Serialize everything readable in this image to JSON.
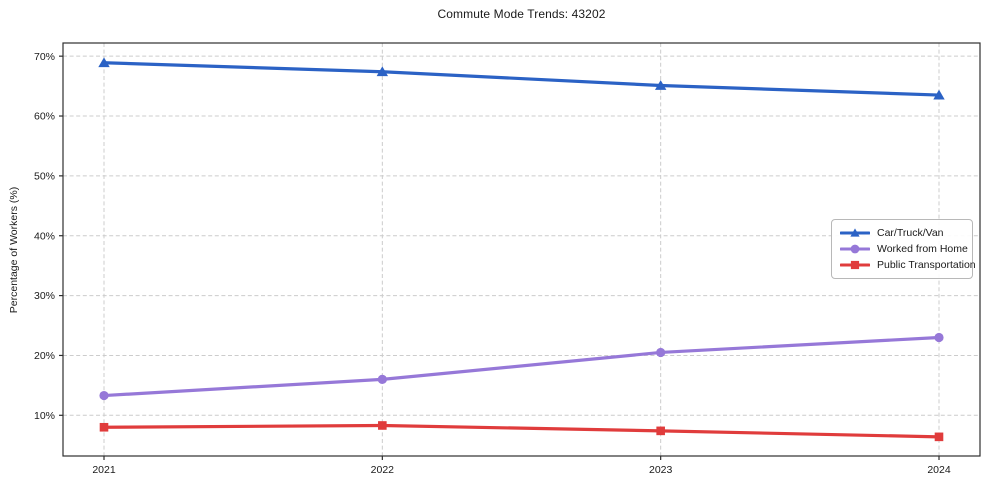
{
  "chart_data": {
    "type": "line",
    "title": "Commute Mode Trends: 43202",
    "xlabel": "",
    "ylabel": "Percentage of Workers (%)",
    "x": [
      2021,
      2022,
      2023,
      2024
    ],
    "yticks": [
      10,
      20,
      30,
      40,
      50,
      60,
      70
    ],
    "ytick_suffix": "%",
    "ylim": [
      3.2,
      72.2
    ],
    "grid": true,
    "grid_style": "dashed",
    "legend_position": "center-right",
    "series": [
      {
        "name": "Car/Truck/Van",
        "values": [
          68.9,
          67.4,
          65.1,
          63.5
        ],
        "color": "#2b62c5",
        "marker": "triangle"
      },
      {
        "name": "Worked from Home",
        "values": [
          13.3,
          16.0,
          20.5,
          23.0
        ],
        "color": "#9678d8",
        "marker": "circle"
      },
      {
        "name": "Public Transportation",
        "values": [
          8.0,
          8.3,
          7.4,
          6.4
        ],
        "color": "#e03c3c",
        "marker": "square"
      }
    ],
    "colors": {
      "grid": "#cccccc",
      "axis": "#2f2f2f",
      "text": "#1a1a1a",
      "plot_background": "#ffffff"
    }
  }
}
